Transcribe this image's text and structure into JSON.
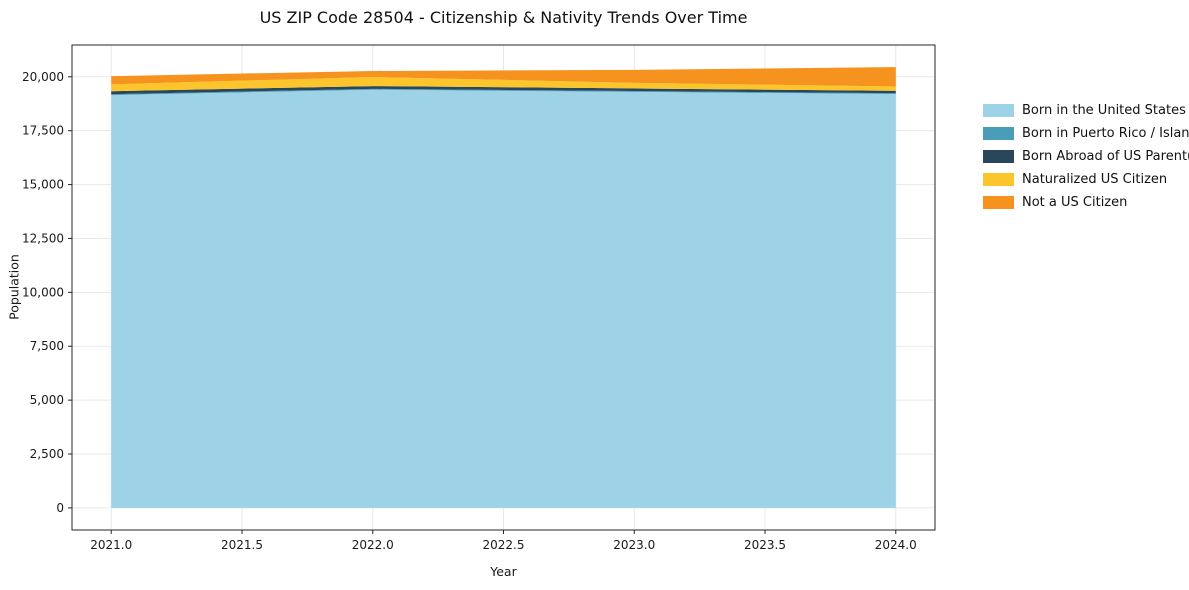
{
  "title": "US ZIP Code 28504 - Citizenship & Nativity Trends Over Time",
  "chart_data": {
    "type": "area",
    "stacked": true,
    "title": "US ZIP Code 28504 - Citizenship & Nativity Trends Over Time",
    "xlabel": "Year",
    "ylabel": "Population",
    "grid": true,
    "legend_position": "right",
    "x": [
      2021,
      2022,
      2023,
      2024
    ],
    "series": [
      {
        "name": "Born in the United States",
        "color": "#9ed2e6",
        "values": [
          19150,
          19400,
          19300,
          19200
        ]
      },
      {
        "name": "Born in Puerto Rico / Islands",
        "color": "#4a9db8",
        "values": [
          40,
          40,
          40,
          40
        ]
      },
      {
        "name": "Born Abroad of US Parent(s)",
        "color": "#29465b",
        "values": [
          140,
          130,
          120,
          110
        ]
      },
      {
        "name": "Naturalized US Citizen",
        "color": "#fdc52c",
        "values": [
          320,
          420,
          260,
          200
        ]
      },
      {
        "name": "Not a US Citizen",
        "color": "#f6931e",
        "values": [
          380,
          280,
          600,
          900
        ]
      }
    ],
    "xlim": [
      2020.85,
      2024.15
    ],
    "ylim": [
      -1025,
      21475
    ],
    "xticks": [
      2021.0,
      2021.5,
      2022.0,
      2022.5,
      2023.0,
      2023.5,
      2024.0
    ],
    "xtick_labels": [
      "2021.0",
      "2021.5",
      "2022.0",
      "2022.5",
      "2023.0",
      "2023.5",
      "2024.0"
    ],
    "yticks": [
      0,
      2500,
      5000,
      7500,
      10000,
      12500,
      15000,
      17500,
      20000
    ],
    "ytick_labels": [
      "0",
      "2,500",
      "5,000",
      "7,500",
      "10,000",
      "12,500",
      "15,000",
      "17,500",
      "20,000"
    ]
  }
}
